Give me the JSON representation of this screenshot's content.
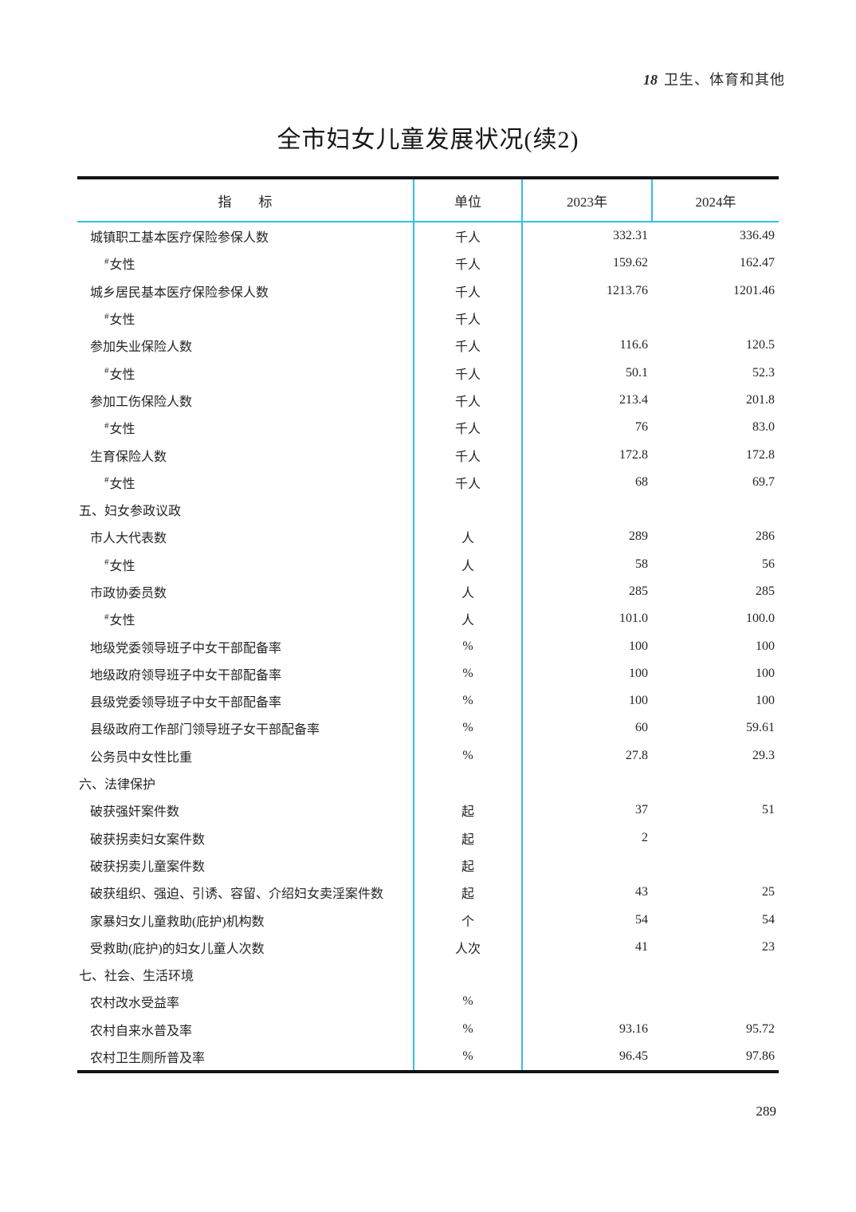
{
  "colors": {
    "accent_line": "#35bde4",
    "dark_rule": "#141414"
  },
  "page": {
    "chapter_no": "18",
    "chapter_title": "卫生、体育和其他",
    "title": "全市妇女儿童发展状况(续2)",
    "page_number": "289"
  },
  "table": {
    "headers": {
      "indicator": "指　　标",
      "unit": "单位",
      "y2023": "2023年",
      "y2024": "2024年"
    },
    "rows": [
      {
        "level": "item",
        "prefix": "",
        "indicator": "城镇职工基本医疗保险参保人数",
        "unit": "千人",
        "v2023": "332.31",
        "v2024": "336.49"
      },
      {
        "level": "sub",
        "prefix": "#",
        "indicator": "女性",
        "unit": "千人",
        "v2023": "159.62",
        "v2024": "162.47"
      },
      {
        "level": "item",
        "prefix": "",
        "indicator": "城乡居民基本医疗保险参保人数",
        "unit": "千人",
        "v2023": "1213.76",
        "v2024": "1201.46"
      },
      {
        "level": "sub",
        "prefix": "#",
        "indicator": "女性",
        "unit": "千人",
        "v2023": "",
        "v2024": ""
      },
      {
        "level": "item",
        "prefix": "",
        "indicator": "参加失业保险人数",
        "unit": "千人",
        "v2023": "116.6",
        "v2024": "120.5"
      },
      {
        "level": "sub",
        "prefix": "#",
        "indicator": "女性",
        "unit": "千人",
        "v2023": "50.1",
        "v2024": "52.3"
      },
      {
        "level": "item",
        "prefix": "",
        "indicator": "参加工伤保险人数",
        "unit": "千人",
        "v2023": "213.4",
        "v2024": "201.8"
      },
      {
        "level": "sub",
        "prefix": "#",
        "indicator": "女性",
        "unit": "千人",
        "v2023": "76",
        "v2024": "83.0"
      },
      {
        "level": "item",
        "prefix": "",
        "indicator": "生育保险人数",
        "unit": "千人",
        "v2023": "172.8",
        "v2024": "172.8"
      },
      {
        "level": "sub",
        "prefix": "#",
        "indicator": "女性",
        "unit": "千人",
        "v2023": "68",
        "v2024": "69.7"
      },
      {
        "level": "section",
        "prefix": "",
        "indicator": "五、妇女参政议政",
        "unit": "",
        "v2023": "",
        "v2024": ""
      },
      {
        "level": "item",
        "prefix": "",
        "indicator": "市人大代表数",
        "unit": "人",
        "v2023": "289",
        "v2024": "286"
      },
      {
        "level": "sub",
        "prefix": "#",
        "indicator": "女性",
        "unit": "人",
        "v2023": "58",
        "v2024": "56"
      },
      {
        "level": "item",
        "prefix": "",
        "indicator": "市政协委员数",
        "unit": "人",
        "v2023": "285",
        "v2024": "285"
      },
      {
        "level": "sub",
        "prefix": "#",
        "indicator": "女性",
        "unit": "人",
        "v2023": "101.0",
        "v2024": "100.0"
      },
      {
        "level": "item",
        "prefix": "",
        "indicator": "地级党委领导班子中女干部配备率",
        "unit": "%",
        "v2023": "100",
        "v2024": "100"
      },
      {
        "level": "item",
        "prefix": "",
        "indicator": "地级政府领导班子中女干部配备率",
        "unit": "%",
        "v2023": "100",
        "v2024": "100"
      },
      {
        "level": "item",
        "prefix": "",
        "indicator": "县级党委领导班子中女干部配备率",
        "unit": "%",
        "v2023": "100",
        "v2024": "100"
      },
      {
        "level": "item",
        "prefix": "",
        "indicator": "县级政府工作部门领导班子女干部配备率",
        "unit": "%",
        "v2023": "60",
        "v2024": "59.61"
      },
      {
        "level": "item",
        "prefix": "",
        "indicator": "公务员中女性比重",
        "unit": "%",
        "v2023": "27.8",
        "v2024": "29.3"
      },
      {
        "level": "section",
        "prefix": "",
        "indicator": "六、法律保护",
        "unit": "",
        "v2023": "",
        "v2024": ""
      },
      {
        "level": "item",
        "prefix": "",
        "indicator": "破获强奸案件数",
        "unit": "起",
        "v2023": "37",
        "v2024": "51"
      },
      {
        "level": "item",
        "prefix": "",
        "indicator": "破获拐卖妇女案件数",
        "unit": "起",
        "v2023": "2",
        "v2024": ""
      },
      {
        "level": "item",
        "prefix": "",
        "indicator": "破获拐卖儿童案件数",
        "unit": "起",
        "v2023": "",
        "v2024": ""
      },
      {
        "level": "item",
        "prefix": "",
        "indicator": "破获组织、强迫、引诱、容留、介绍妇女卖淫案件数",
        "unit": "起",
        "v2023": "43",
        "v2024": "25"
      },
      {
        "level": "item",
        "prefix": "",
        "indicator": "家暴妇女儿童救助(庇护)机构数",
        "unit": "个",
        "v2023": "54",
        "v2024": "54"
      },
      {
        "level": "item",
        "prefix": "",
        "indicator": "受救助(庇护)的妇女儿童人次数",
        "unit": "人次",
        "v2023": "41",
        "v2024": "23"
      },
      {
        "level": "section",
        "prefix": "",
        "indicator": "七、社会、生活环境",
        "unit": "",
        "v2023": "",
        "v2024": ""
      },
      {
        "level": "item",
        "prefix": "",
        "indicator": "农村改水受益率",
        "unit": "%",
        "v2023": "",
        "v2024": ""
      },
      {
        "level": "item",
        "prefix": "",
        "indicator": "农村自来水普及率",
        "unit": "%",
        "v2023": "93.16",
        "v2024": "95.72"
      },
      {
        "level": "item",
        "prefix": "",
        "indicator": "农村卫生厕所普及率",
        "unit": "%",
        "v2023": "96.45",
        "v2024": "97.86"
      }
    ]
  }
}
